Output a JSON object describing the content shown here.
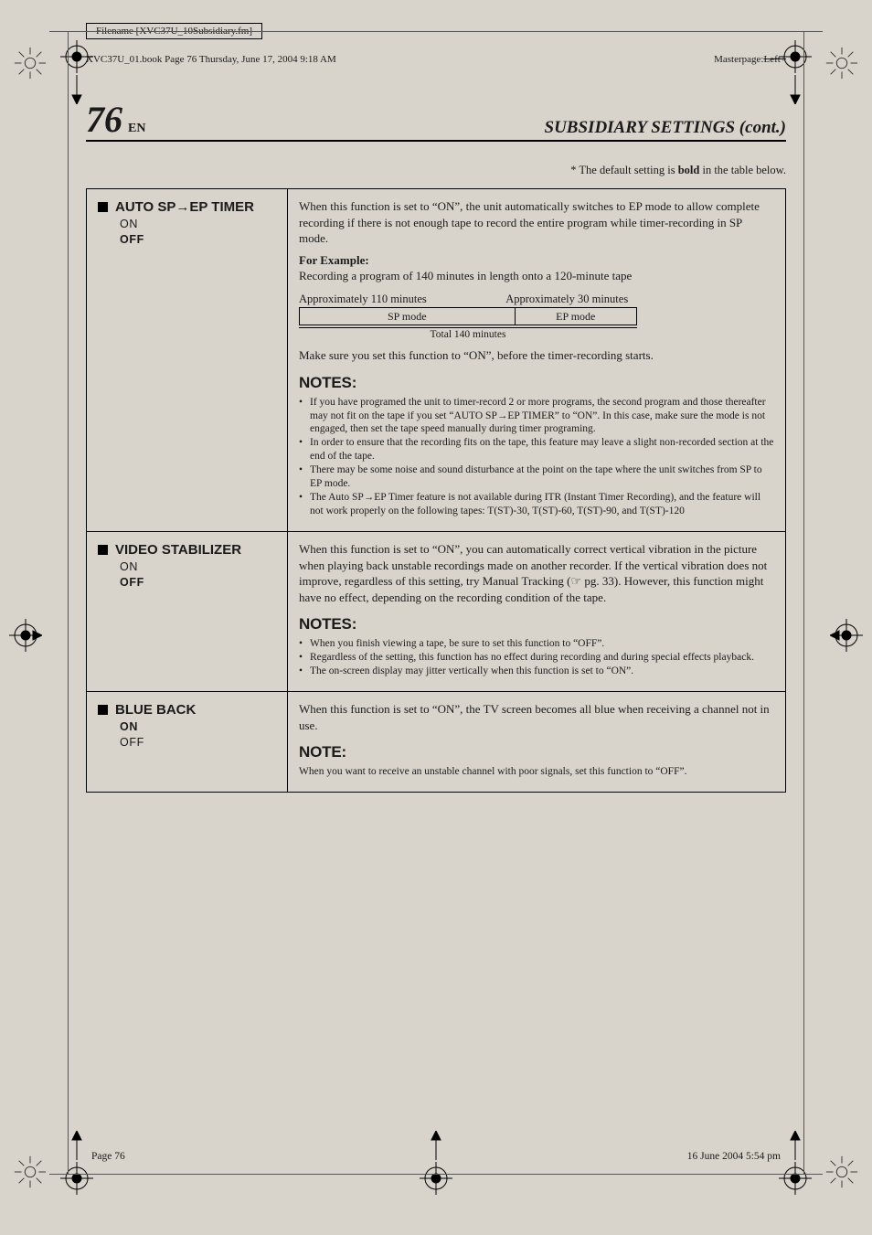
{
  "frame": {
    "filename": "Filename [XVC37U_10Subsidiary.fm]",
    "book_info": "XVC37U_01.book  Page 76  Thursday, June 17, 2004  9:18 AM",
    "masterpage_label": "Masterpage:",
    "masterpage_value": "Left+",
    "footer_left": "Page 76",
    "footer_right": "16 June 2004 5:54 pm"
  },
  "header": {
    "page_number": "76",
    "lang": "EN",
    "section": "SUBSIDIARY SETTINGS (cont.)"
  },
  "default_note": "* The default setting is <b>bold</b> in the table below.",
  "arrow": "→",
  "rows": [
    {
      "name_pre": "AUTO SP",
      "name_post": "EP TIMER",
      "options": [
        "ON",
        "OFF"
      ],
      "bold_idx": 1,
      "body": "When this function is set to “ON”, the unit automatically switches to EP mode to allow complete recording if there is not enough tape to record the entire program while timer-recording in SP mode.",
      "example": {
        "label": "For Example:",
        "desc": "Recording a program of 140 minutes in length onto a 120-minute tape",
        "approx_left": "Approximately 110 minutes",
        "approx_right": "Approximately 30 minutes",
        "sp_label": "SP mode",
        "ep_label": "EP mode",
        "total": "Total 140 minutes"
      },
      "after_example": "Make sure you set this function to “ON”, before the timer-recording starts.",
      "notes_heading": "NOTES:",
      "notes": [
        "If you have programed the unit to timer-record 2 or more programs, the second program and those thereafter may not fit on the tape if you set “AUTO SP→EP TIMER” to “ON”. In this case, make sure the mode is not engaged, then set the tape speed manually during timer programing.",
        "In order to ensure that the recording fits on the tape, this feature may leave a slight non-recorded section at the end of the tape.",
        "There may be some noise and sound disturbance at the point on the tape where the unit switches from SP to EP mode.",
        "The Auto SP→EP Timer feature is not available during ITR (Instant Timer Recording), and the feature will not work properly on the following tapes: T(ST)-30, T(ST)-60, T(ST)-90, and T(ST)-120"
      ]
    },
    {
      "name": "VIDEO STABILIZER",
      "options": [
        "ON",
        "OFF"
      ],
      "bold_idx": 1,
      "body": "When this function is set to “ON”, you can automatically correct vertical vibration in the picture when playing back unstable recordings made on another recorder. If the vertical vibration does not improve, regardless of this setting, try Manual Tracking (☞ pg. 33). However, this function might have no effect, depending on the recording condition of the tape.",
      "notes_heading": "NOTES:",
      "notes": [
        "When you finish viewing a tape, be sure to set this function to “OFF”.",
        "Regardless of the setting, this function has no effect during recording and during special effects playback.",
        "The on-screen display may jitter vertically when this function is set to “ON”."
      ]
    },
    {
      "name": "BLUE BACK",
      "options": [
        "ON",
        "OFF"
      ],
      "bold_idx": 0,
      "body": "When this function is set to “ON”, the TV screen becomes all blue when receiving a channel not in use.",
      "notes_heading": "NOTE:",
      "notes": [
        "When you want to receive an unstable channel with poor signals, set this function to “OFF”."
      ],
      "notes_plain": true
    }
  ]
}
